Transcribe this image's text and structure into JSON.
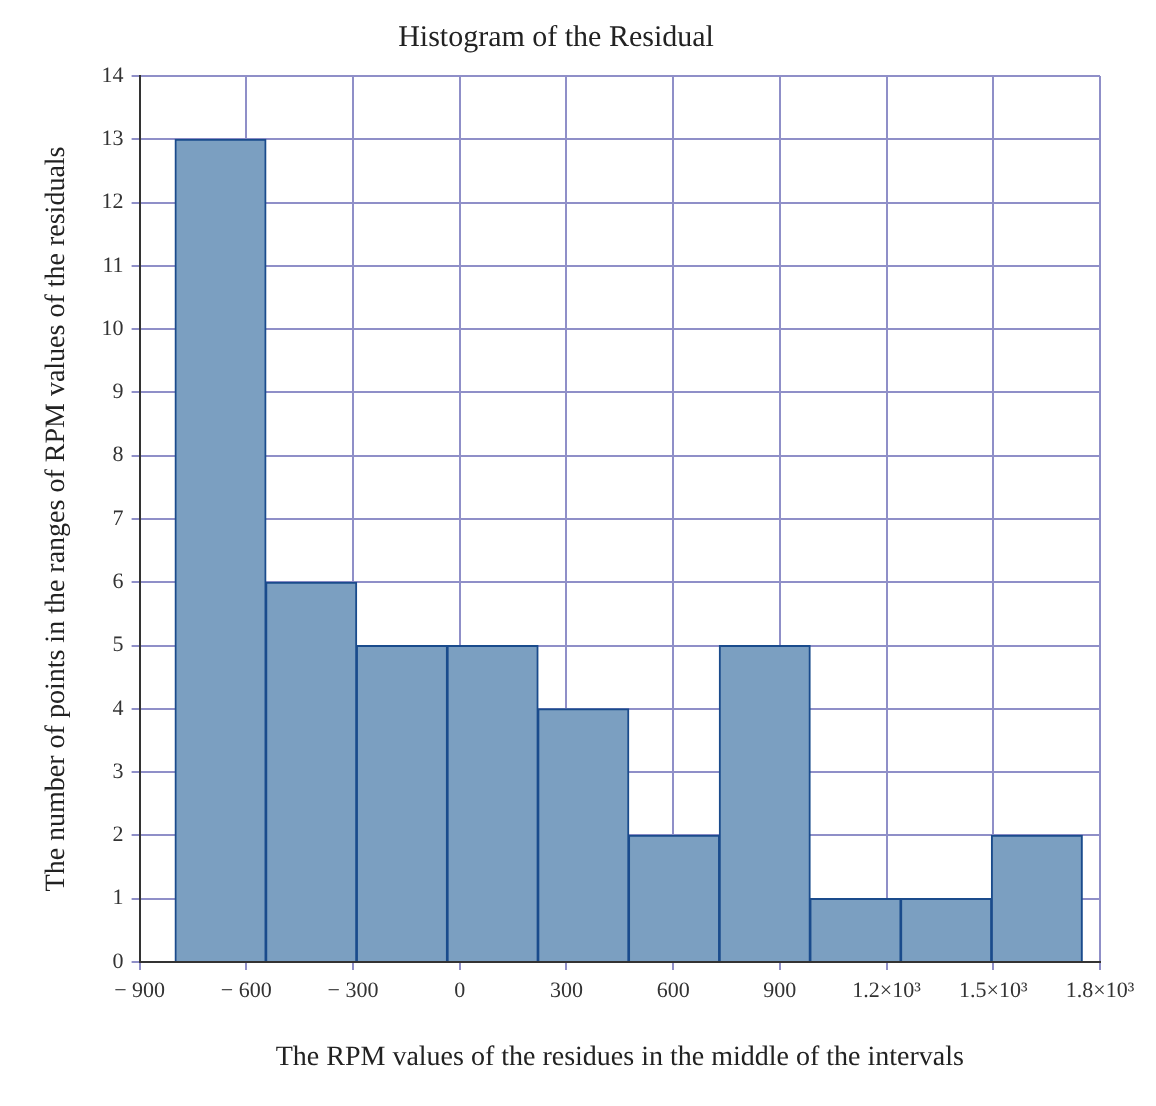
{
  "chart_data": {
    "type": "histogram",
    "title": "Histogram of the Residual",
    "xlabel": "The RPM values of the residues in the middle of the intervals",
    "ylabel": "The number of points in the ranges of RPM values of the residuals",
    "bins": [
      -800,
      -545,
      -290,
      -35,
      220,
      475,
      730,
      985,
      1240,
      1495,
      1750
    ],
    "values": [
      13,
      6,
      5,
      5,
      4,
      2,
      5,
      1,
      1,
      2
    ],
    "color": "#7b9fc1",
    "xlim": [
      -900,
      1800
    ],
    "xticks": [
      {
        "value": -900,
        "label": "− 900"
      },
      {
        "value": -600,
        "label": "− 600"
      },
      {
        "value": -300,
        "label": "− 300"
      },
      0,
      300,
      600,
      900,
      {
        "value": 1200,
        "label": "1.2×10³"
      },
      {
        "value": 1500,
        "label": "1.5×10³"
      },
      {
        "value": 1800,
        "label": "1.8×10³"
      }
    ],
    "ylim": [
      0,
      14
    ],
    "yticks": [
      0,
      1,
      2,
      3,
      4,
      5,
      6,
      7,
      8,
      9,
      10,
      11,
      12,
      13,
      14
    ],
    "grid": true,
    "legend": false
  }
}
